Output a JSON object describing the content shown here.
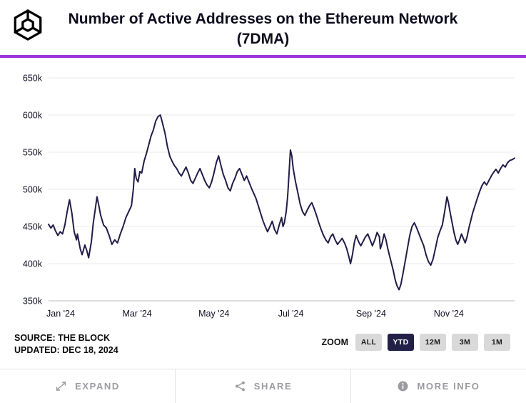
{
  "header": {
    "title_line1": "Number of Active Addresses on the Ethereum Network",
    "title_line2": "(7DMA)",
    "logo_icon": "the-block-logo",
    "accent_color": "#9c35dd"
  },
  "chart_data": {
    "type": "line",
    "title": "Number of Active Addresses on the Ethereum Network (7DMA)",
    "xlabel": "",
    "ylabel": "",
    "unit": "thousands of active addresses",
    "grid": true,
    "legend": "none",
    "line_color": "#211d49",
    "ylim": [
      350,
      650
    ],
    "yticks": [
      {
        "value": 350,
        "label": "350k"
      },
      {
        "value": 400,
        "label": "400k"
      },
      {
        "value": 450,
        "label": "450k"
      },
      {
        "value": 500,
        "label": "500k"
      },
      {
        "value": 550,
        "label": "550k"
      },
      {
        "value": 600,
        "label": "600k"
      },
      {
        "value": 650,
        "label": "650k"
      }
    ],
    "xticks": [
      {
        "pos": 0.026,
        "label": "Jan '24"
      },
      {
        "pos": 0.19,
        "label": "Mar '24"
      },
      {
        "pos": 0.355,
        "label": "May '24"
      },
      {
        "pos": 0.52,
        "label": "Jul '24"
      },
      {
        "pos": 0.692,
        "label": "Sep '24"
      },
      {
        "pos": 0.859,
        "label": "Nov '24"
      }
    ],
    "series": [
      {
        "name": "Active Addresses (7DMA)",
        "x_range": [
          "Jan 2024",
          "Dec 18 2024"
        ],
        "points": [
          [
            0.0,
            453
          ],
          [
            0.005,
            448
          ],
          [
            0.01,
            452
          ],
          [
            0.015,
            444
          ],
          [
            0.02,
            438
          ],
          [
            0.025,
            443
          ],
          [
            0.03,
            440
          ],
          [
            0.035,
            452
          ],
          [
            0.04,
            470
          ],
          [
            0.045,
            486
          ],
          [
            0.05,
            468
          ],
          [
            0.055,
            443
          ],
          [
            0.06,
            432
          ],
          [
            0.062,
            440
          ],
          [
            0.068,
            420
          ],
          [
            0.072,
            412
          ],
          [
            0.078,
            425
          ],
          [
            0.082,
            418
          ],
          [
            0.086,
            408
          ],
          [
            0.092,
            430
          ],
          [
            0.096,
            455
          ],
          [
            0.1,
            472
          ],
          [
            0.104,
            490
          ],
          [
            0.108,
            478
          ],
          [
            0.112,
            465
          ],
          [
            0.118,
            452
          ],
          [
            0.124,
            448
          ],
          [
            0.13,
            438
          ],
          [
            0.136,
            426
          ],
          [
            0.142,
            432
          ],
          [
            0.148,
            428
          ],
          [
            0.154,
            440
          ],
          [
            0.16,
            450
          ],
          [
            0.166,
            462
          ],
          [
            0.172,
            470
          ],
          [
            0.178,
            478
          ],
          [
            0.182,
            500
          ],
          [
            0.185,
            528
          ],
          [
            0.188,
            515
          ],
          [
            0.192,
            510
          ],
          [
            0.196,
            524
          ],
          [
            0.2,
            522
          ],
          [
            0.205,
            538
          ],
          [
            0.21,
            548
          ],
          [
            0.215,
            560
          ],
          [
            0.22,
            572
          ],
          [
            0.225,
            580
          ],
          [
            0.23,
            592
          ],
          [
            0.235,
            598
          ],
          [
            0.24,
            600
          ],
          [
            0.245,
            588
          ],
          [
            0.25,
            575
          ],
          [
            0.255,
            558
          ],
          [
            0.26,
            545
          ],
          [
            0.265,
            538
          ],
          [
            0.27,
            532
          ],
          [
            0.275,
            528
          ],
          [
            0.28,
            522
          ],
          [
            0.285,
            518
          ],
          [
            0.29,
            524
          ],
          [
            0.295,
            530
          ],
          [
            0.3,
            522
          ],
          [
            0.305,
            512
          ],
          [
            0.31,
            508
          ],
          [
            0.315,
            515
          ],
          [
            0.32,
            522
          ],
          [
            0.325,
            528
          ],
          [
            0.33,
            520
          ],
          [
            0.335,
            512
          ],
          [
            0.34,
            506
          ],
          [
            0.345,
            502
          ],
          [
            0.35,
            510
          ],
          [
            0.355,
            522
          ],
          [
            0.36,
            536
          ],
          [
            0.365,
            545
          ],
          [
            0.37,
            532
          ],
          [
            0.375,
            520
          ],
          [
            0.38,
            512
          ],
          [
            0.385,
            502
          ],
          [
            0.39,
            498
          ],
          [
            0.395,
            508
          ],
          [
            0.4,
            515
          ],
          [
            0.405,
            524
          ],
          [
            0.41,
            528
          ],
          [
            0.415,
            520
          ],
          [
            0.42,
            512
          ],
          [
            0.425,
            518
          ],
          [
            0.43,
            510
          ],
          [
            0.435,
            502
          ],
          [
            0.44,
            495
          ],
          [
            0.445,
            488
          ],
          [
            0.45,
            478
          ],
          [
            0.455,
            468
          ],
          [
            0.46,
            458
          ],
          [
            0.465,
            450
          ],
          [
            0.47,
            443
          ],
          [
            0.475,
            450
          ],
          [
            0.48,
            457
          ],
          [
            0.485,
            446
          ],
          [
            0.49,
            440
          ],
          [
            0.495,
            452
          ],
          [
            0.5,
            462
          ],
          [
            0.503,
            450
          ],
          [
            0.506,
            455
          ],
          [
            0.51,
            470
          ],
          [
            0.513,
            490
          ],
          [
            0.516,
            520
          ],
          [
            0.519,
            553
          ],
          [
            0.522,
            545
          ],
          [
            0.525,
            528
          ],
          [
            0.53,
            510
          ],
          [
            0.535,
            495
          ],
          [
            0.54,
            480
          ],
          [
            0.545,
            470
          ],
          [
            0.55,
            465
          ],
          [
            0.555,
            472
          ],
          [
            0.56,
            478
          ],
          [
            0.565,
            482
          ],
          [
            0.57,
            474
          ],
          [
            0.575,
            465
          ],
          [
            0.58,
            455
          ],
          [
            0.585,
            446
          ],
          [
            0.59,
            438
          ],
          [
            0.595,
            432
          ],
          [
            0.6,
            428
          ],
          [
            0.605,
            436
          ],
          [
            0.61,
            440
          ],
          [
            0.615,
            432
          ],
          [
            0.62,
            426
          ],
          [
            0.625,
            430
          ],
          [
            0.63,
            434
          ],
          [
            0.635,
            428
          ],
          [
            0.64,
            420
          ],
          [
            0.645,
            408
          ],
          [
            0.648,
            400
          ],
          [
            0.652,
            412
          ],
          [
            0.656,
            428
          ],
          [
            0.66,
            438
          ],
          [
            0.665,
            430
          ],
          [
            0.67,
            424
          ],
          [
            0.675,
            430
          ],
          [
            0.68,
            436
          ],
          [
            0.685,
            440
          ],
          [
            0.69,
            432
          ],
          [
            0.695,
            424
          ],
          [
            0.7,
            432
          ],
          [
            0.705,
            442
          ],
          [
            0.71,
            436
          ],
          [
            0.712,
            420
          ],
          [
            0.716,
            428
          ],
          [
            0.72,
            440
          ],
          [
            0.724,
            432
          ],
          [
            0.728,
            420
          ],
          [
            0.732,
            410
          ],
          [
            0.736,
            400
          ],
          [
            0.74,
            390
          ],
          [
            0.744,
            378
          ],
          [
            0.748,
            370
          ],
          [
            0.752,
            365
          ],
          [
            0.756,
            372
          ],
          [
            0.76,
            385
          ],
          [
            0.765,
            402
          ],
          [
            0.77,
            420
          ],
          [
            0.775,
            438
          ],
          [
            0.78,
            450
          ],
          [
            0.785,
            455
          ],
          [
            0.79,
            448
          ],
          [
            0.795,
            440
          ],
          [
            0.8,
            432
          ],
          [
            0.805,
            424
          ],
          [
            0.81,
            412
          ],
          [
            0.815,
            403
          ],
          [
            0.82,
            398
          ],
          [
            0.825,
            406
          ],
          [
            0.83,
            420
          ],
          [
            0.835,
            435
          ],
          [
            0.84,
            444
          ],
          [
            0.845,
            452
          ],
          [
            0.85,
            470
          ],
          [
            0.855,
            490
          ],
          [
            0.858,
            482
          ],
          [
            0.862,
            468
          ],
          [
            0.866,
            455
          ],
          [
            0.87,
            442
          ],
          [
            0.874,
            432
          ],
          [
            0.878,
            426
          ],
          [
            0.882,
            432
          ],
          [
            0.886,
            440
          ],
          [
            0.89,
            434
          ],
          [
            0.894,
            428
          ],
          [
            0.898,
            436
          ],
          [
            0.902,
            448
          ],
          [
            0.906,
            458
          ],
          [
            0.91,
            468
          ],
          [
            0.915,
            478
          ],
          [
            0.92,
            488
          ],
          [
            0.925,
            497
          ],
          [
            0.93,
            505
          ],
          [
            0.935,
            510
          ],
          [
            0.94,
            506
          ],
          [
            0.945,
            512
          ],
          [
            0.95,
            518
          ],
          [
            0.955,
            523
          ],
          [
            0.96,
            527
          ],
          [
            0.965,
            522
          ],
          [
            0.97,
            528
          ],
          [
            0.975,
            533
          ],
          [
            0.98,
            530
          ],
          [
            0.985,
            536
          ],
          [
            0.99,
            539
          ],
          [
            0.995,
            540
          ],
          [
            1.0,
            542
          ]
        ]
      }
    ]
  },
  "source": {
    "line1": "SOURCE: THE BLOCK",
    "line2": "UPDATED: DEC 18, 2024"
  },
  "zoom": {
    "label": "ZOOM",
    "selected_bg": "#232048",
    "button_bg": "#d9d9d9",
    "options": [
      {
        "label": "ALL",
        "selected": false
      },
      {
        "label": "YTD",
        "selected": true
      },
      {
        "label": "12M",
        "selected": false
      },
      {
        "label": "3M",
        "selected": false
      },
      {
        "label": "1M",
        "selected": false
      }
    ]
  },
  "footer": {
    "buttons": [
      {
        "label": "EXPAND",
        "icon": "expand-icon"
      },
      {
        "label": "SHARE",
        "icon": "share-icon"
      },
      {
        "label": "MORE INFO",
        "icon": "info-icon"
      }
    ]
  }
}
